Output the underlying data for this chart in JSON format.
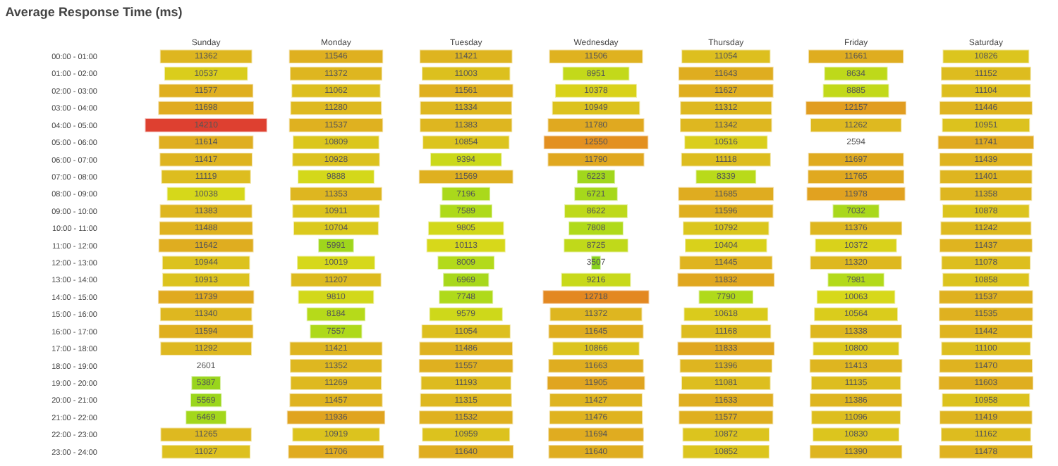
{
  "chart_data": {
    "type": "heatmap",
    "title": "Average Response Time (ms)",
    "data_labels": true,
    "categories": [
      "Sunday",
      "Monday",
      "Tuesday",
      "Wednesday",
      "Thursday",
      "Friday",
      "Saturday"
    ],
    "y_categories": [
      "00:00 - 01:00",
      "01:00 - 02:00",
      "02:00 - 03:00",
      "03:00 - 04:00",
      "04:00 - 05:00",
      "05:00 - 06:00",
      "06:00 - 07:00",
      "07:00 - 08:00",
      "08:00 - 09:00",
      "09:00 - 10:00",
      "10:00 - 11:00",
      "11:00 - 12:00",
      "12:00 - 13:00",
      "13:00 - 14:00",
      "14:00 - 15:00",
      "15:00 - 16:00",
      "16:00 - 17:00",
      "17:00 - 18:00",
      "18:00 - 19:00",
      "19:00 - 20:00",
      "20:00 - 21:00",
      "21:00 - 22:00",
      "22:00 - 23:00",
      "23:00 - 24:00"
    ],
    "cells": [
      [
        11362,
        11546,
        11421,
        11506,
        11054,
        11661,
        10826
      ],
      [
        10537,
        11372,
        11003,
        8951,
        11643,
        8634,
        11152
      ],
      [
        11577,
        11062,
        11561,
        10378,
        11627,
        8885,
        11104
      ],
      [
        11698,
        11280,
        11334,
        10949,
        11312,
        12157,
        11446
      ],
      [
        14210,
        11537,
        11383,
        11780,
        11342,
        11262,
        10951
      ],
      [
        11614,
        10809,
        10854,
        12550,
        10516,
        2594,
        11741
      ],
      [
        11417,
        10928,
        9394,
        11790,
        11118,
        11697,
        11439
      ],
      [
        11119,
        9888,
        11569,
        6223,
        8339,
        11765,
        11401
      ],
      [
        10038,
        11353,
        7196,
        6721,
        11685,
        11978,
        11358
      ],
      [
        11383,
        10911,
        7589,
        8622,
        11596,
        7032,
        10878
      ],
      [
        11488,
        10704,
        9805,
        7808,
        10792,
        11376,
        11242
      ],
      [
        11642,
        5991,
        10113,
        8725,
        10404,
        10372,
        11437
      ],
      [
        10944,
        10019,
        8009,
        3507,
        11445,
        11320,
        11078
      ],
      [
        10913,
        11207,
        6969,
        9216,
        11832,
        7981,
        10858
      ],
      [
        11739,
        9810,
        7748,
        12718,
        7790,
        10063,
        11537
      ],
      [
        11340,
        8184,
        9579,
        11372,
        10618,
        10564,
        11535
      ],
      [
        11594,
        7557,
        11054,
        11645,
        11168,
        11338,
        11442
      ],
      [
        11292,
        11421,
        11486,
        10866,
        11833,
        10800,
        11100
      ],
      [
        2601,
        11352,
        11557,
        11663,
        11396,
        11413,
        11470
      ],
      [
        5387,
        11269,
        11193,
        11905,
        11081,
        11135,
        11603
      ],
      [
        5569,
        11457,
        11315,
        11427,
        11633,
        11386,
        10958
      ],
      [
        6469,
        11936,
        11532,
        11476,
        11577,
        11096,
        11419
      ],
      [
        11265,
        10919,
        10959,
        11694,
        10872,
        10830,
        11162
      ],
      [
        11027,
        11706,
        11640,
        11640,
        10852,
        11390,
        11478
      ]
    ]
  }
}
